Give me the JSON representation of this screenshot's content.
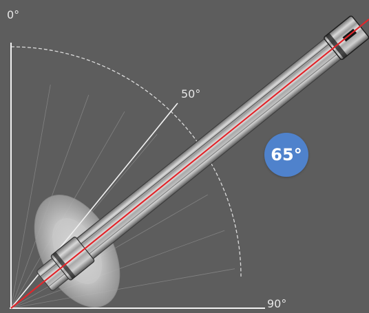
{
  "labels": {
    "zero_deg": "0°",
    "fifty_deg": "50°",
    "ninety_deg": "90°"
  },
  "badge": {
    "text": "65°",
    "color": "#4f82cc"
  },
  "angles": {
    "reference_line_deg": 50,
    "tool_angle_deg": 65
  },
  "colors": {
    "background": "#5d5d5d",
    "axis": "#f0f0f0",
    "arc": "#d9d9d9",
    "ray": "#8a8a8a",
    "tool_axis_line": "#e0262b",
    "tool_body": "#b7b7b7"
  }
}
